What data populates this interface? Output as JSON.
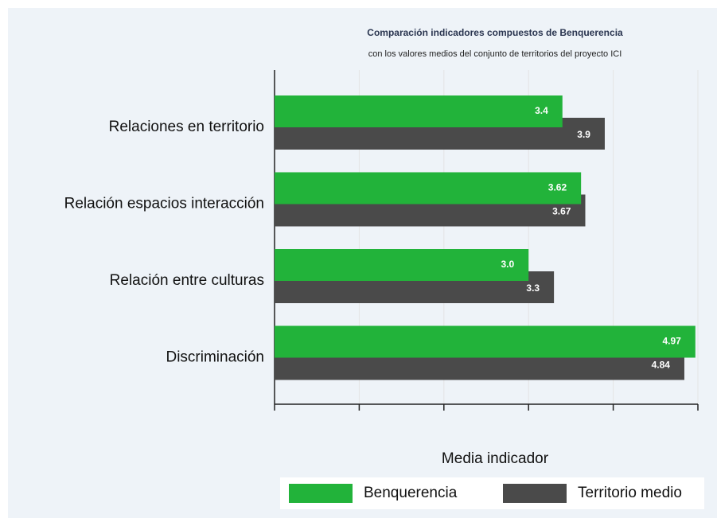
{
  "chart_data": {
    "type": "barh",
    "title": "Comparación indicadores compuestos de Benquerencia",
    "subtitle": "con los valores medios del conjunto de territorios del proyecto ICI",
    "categories": [
      "Relaciones en territorio",
      "Relación espacios interacción",
      "Relación entre culturas",
      "Discriminación"
    ],
    "series": [
      {
        "name": "Benquerencia",
        "color": "#22b33a",
        "values": [
          3.4,
          3.62,
          3.0,
          4.97
        ],
        "value_labels": [
          "3.4",
          "3.62",
          "3.0",
          "4.97"
        ]
      },
      {
        "name": "Territorio medio",
        "color": "#4a4a4a",
        "values": [
          3.9,
          3.67,
          3.3,
          4.84
        ],
        "value_labels": [
          "3.9",
          "3.67",
          "3.3",
          "4.84"
        ]
      }
    ],
    "xlabel": "Media indicador",
    "xlim": [
      0,
      5
    ],
    "xticks": [
      0,
      1,
      2,
      3,
      4,
      5
    ],
    "grid": true,
    "legend": "bottom"
  }
}
